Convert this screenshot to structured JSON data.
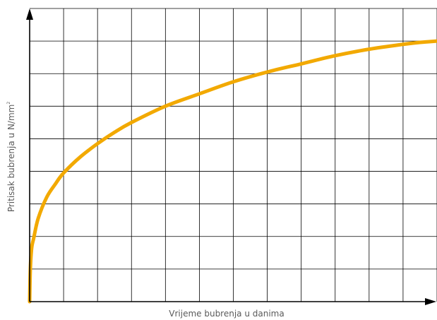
{
  "chart_data": {
    "type": "line",
    "title": "",
    "xlabel": "Vrijeme bubrenja u danima",
    "ylabel": "Pritisak bubrenja u N/mm",
    "ylabel_superscript": "2",
    "x_tick_labels": [],
    "y_tick_labels": [],
    "grid": true,
    "grid_columns": 12,
    "grid_rows": 9,
    "xlim": [
      0,
      12
    ],
    "ylim": [
      0,
      9
    ],
    "series": [
      {
        "color": "#f2a900",
        "x": [
          0,
          0.02,
          0.06,
          0.12,
          0.25,
          0.5,
          0.75,
          1.0,
          1.5,
          2.0,
          2.5,
          3.0,
          4.0,
          5.0,
          6.0,
          7.0,
          8.0,
          9.0,
          10.0,
          11.0,
          11.5,
          12.0
        ],
        "y": [
          0,
          1.0,
          1.65,
          1.95,
          2.55,
          3.2,
          3.6,
          3.95,
          4.45,
          4.85,
          5.2,
          5.5,
          6.0,
          6.38,
          6.75,
          7.05,
          7.3,
          7.55,
          7.75,
          7.9,
          7.96,
          8.0
        ]
      }
    ]
  }
}
